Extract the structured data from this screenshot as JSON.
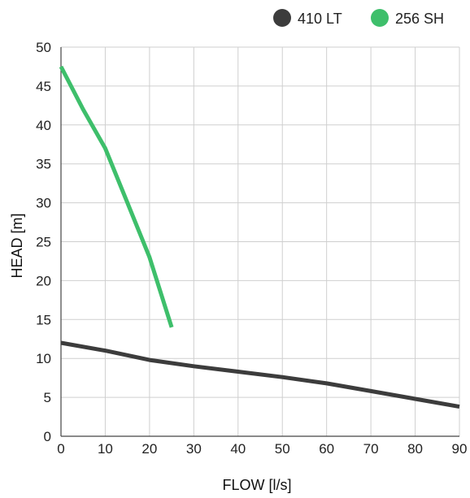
{
  "chart_data": {
    "type": "line",
    "xlabel": "FLOW [l/s]",
    "ylabel": "HEAD [m]",
    "xlim": [
      0,
      90
    ],
    "ylim": [
      0,
      50
    ],
    "xticks": [
      0,
      10,
      20,
      30,
      40,
      50,
      60,
      70,
      80,
      90
    ],
    "yticks": [
      0,
      5,
      10,
      15,
      20,
      25,
      30,
      35,
      40,
      45,
      50
    ],
    "grid": true,
    "legend_position": "top-right",
    "series": [
      {
        "name": "410 LT",
        "color": "#3c3c3c",
        "x": [
          0,
          10,
          20,
          30,
          40,
          50,
          60,
          70,
          80,
          90
        ],
        "y": [
          12.0,
          11.0,
          9.8,
          9.0,
          8.3,
          7.6,
          6.8,
          5.8,
          4.8,
          3.8
        ]
      },
      {
        "name": "256 SH",
        "color": "#3ebf6b",
        "x": [
          0,
          5,
          10,
          15,
          20,
          25
        ],
        "y": [
          47.5,
          42.0,
          37.0,
          30.0,
          23.0,
          14.0
        ]
      }
    ]
  }
}
